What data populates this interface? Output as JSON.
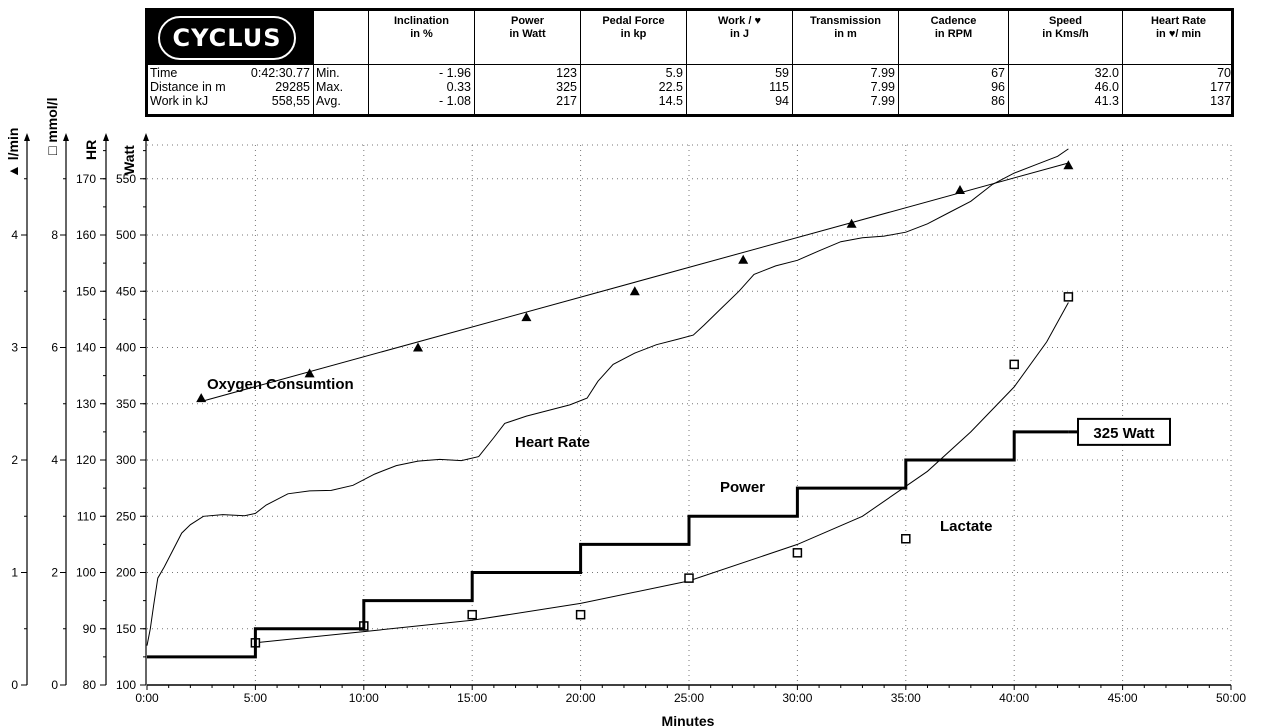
{
  "logo": {
    "text": "CYCLUS 2"
  },
  "header": {
    "columns": [
      {
        "line1": "Inclination",
        "line2": "in %"
      },
      {
        "line1": "Power",
        "line2": "in Watt"
      },
      {
        "line1": "Pedal Force",
        "line2": "in kp"
      },
      {
        "line1": "Work / ♥",
        "line2": "in J"
      },
      {
        "line1": "Transmission",
        "line2": "in m"
      },
      {
        "line1": "Cadence",
        "line2": "in RPM"
      },
      {
        "line1": "Speed",
        "line2": "in Kms/h"
      },
      {
        "line1": "Heart Rate",
        "line2": "in ♥/ min"
      }
    ],
    "summary": [
      {
        "label": "Time",
        "value": "0:42:30.77"
      },
      {
        "label": "Distance in m",
        "value": "29285"
      },
      {
        "label": "Work in kJ",
        "value": "558,55"
      }
    ],
    "stats": [
      {
        "label": "Min.",
        "values": [
          "- 1.96",
          "123",
          "5.9",
          "59",
          "7.99",
          "67",
          "32.0",
          "70"
        ]
      },
      {
        "label": "Max.",
        "values": [
          "0.33",
          "325",
          "22.5",
          "115",
          "7.99",
          "96",
          "46.0",
          "177"
        ]
      },
      {
        "label": "Avg.",
        "values": [
          "- 1.08",
          "217",
          "14.5",
          "94",
          "7.99",
          "86",
          "41.3",
          "137"
        ]
      }
    ]
  },
  "chart_data": {
    "type": "line",
    "xlabel": "Minutes",
    "xlim": [
      0,
      50
    ],
    "x_ticks": [
      "0:00",
      "5:00",
      "10:00",
      "15:00",
      "20:00",
      "25:00",
      "30:00",
      "35:00",
      "40:00",
      "45:00",
      "50:00"
    ],
    "grid": true,
    "axes": [
      {
        "id": "vo2",
        "label": "▲ l/min",
        "range": [
          0,
          4.8
        ],
        "ticks": [
          "0",
          "1",
          "2",
          "3",
          "4"
        ],
        "tick_values": [
          0,
          1,
          2,
          3,
          4
        ]
      },
      {
        "id": "lactate",
        "label": "□ mmol/l",
        "range": [
          0,
          9.6
        ],
        "ticks": [
          "0",
          "2",
          "4",
          "6",
          "8"
        ],
        "tick_values": [
          0,
          2,
          4,
          6,
          8
        ]
      },
      {
        "id": "hr",
        "label": "HR",
        "range": [
          80,
          176
        ],
        "ticks": [
          "80",
          "90",
          "100",
          "110",
          "120",
          "130",
          "140",
          "150",
          "160",
          "170"
        ],
        "tick_values": [
          80,
          90,
          100,
          110,
          120,
          130,
          140,
          150,
          160,
          170
        ]
      },
      {
        "id": "watt",
        "label": "Watt",
        "range": [
          100,
          580
        ],
        "ticks": [
          "100",
          "150",
          "200",
          "250",
          "300",
          "350",
          "400",
          "450",
          "500",
          "550"
        ],
        "tick_values": [
          100,
          150,
          200,
          250,
          300,
          350,
          400,
          450,
          500,
          550
        ]
      }
    ],
    "series": [
      {
        "name": "Oxygen Consumtion",
        "axis": "vo2",
        "marker": "triangle",
        "points": [
          [
            2.5,
            2.55
          ],
          [
            7.5,
            2.77
          ],
          [
            12.5,
            3.0
          ],
          [
            17.5,
            3.27
          ],
          [
            22.5,
            3.5
          ],
          [
            27.5,
            3.78
          ],
          [
            32.5,
            4.1
          ],
          [
            37.5,
            4.4
          ],
          [
            42.5,
            4.62
          ]
        ],
        "trend": [
          [
            2.5,
            2.52
          ],
          [
            42.5,
            4.64
          ]
        ]
      },
      {
        "name": "Heart Rate",
        "axis": "hr",
        "points": [
          [
            0,
            87
          ],
          [
            0.15,
            90
          ],
          [
            0.3,
            94
          ],
          [
            0.5,
            99
          ],
          [
            0.8,
            101
          ],
          [
            1.2,
            104
          ],
          [
            1.6,
            107
          ],
          [
            2,
            108.5
          ],
          [
            2.6,
            110
          ],
          [
            3.5,
            110.3
          ],
          [
            4.5,
            110.1
          ],
          [
            5,
            110.5
          ],
          [
            5.5,
            112
          ],
          [
            6.5,
            114
          ],
          [
            7.5,
            114.5
          ],
          [
            8.5,
            114.6
          ],
          [
            9.5,
            115.5
          ],
          [
            10.5,
            117.5
          ],
          [
            11.5,
            119
          ],
          [
            12.5,
            119.8
          ],
          [
            13.5,
            120.1
          ],
          [
            14.5,
            119.9
          ],
          [
            15.3,
            120.6
          ],
          [
            16,
            124
          ],
          [
            16.5,
            126.5
          ],
          [
            17.5,
            127.8
          ],
          [
            18.5,
            128.8
          ],
          [
            19.5,
            129.8
          ],
          [
            20.3,
            131
          ],
          [
            20.8,
            134
          ],
          [
            21.5,
            137
          ],
          [
            22.5,
            139
          ],
          [
            23.5,
            140.5
          ],
          [
            24.5,
            141.5
          ],
          [
            25.2,
            142.2
          ],
          [
            25.7,
            144
          ],
          [
            26.5,
            147
          ],
          [
            27.3,
            150
          ],
          [
            28,
            153
          ],
          [
            29,
            154.5
          ],
          [
            30,
            155.5
          ],
          [
            31,
            157.2
          ],
          [
            32,
            158.8
          ],
          [
            33,
            159.5
          ],
          [
            34,
            159.8
          ],
          [
            35,
            160.5
          ],
          [
            36,
            162
          ],
          [
            37,
            164
          ],
          [
            38,
            166
          ],
          [
            39,
            169
          ],
          [
            40,
            171
          ],
          [
            41,
            172.5
          ],
          [
            42,
            174
          ],
          [
            42.5,
            175.3
          ]
        ]
      },
      {
        "name": "Power",
        "axis": "watt",
        "step": true,
        "points": [
          [
            0,
            125
          ],
          [
            5,
            125
          ],
          [
            5,
            150
          ],
          [
            10,
            150
          ],
          [
            10,
            175
          ],
          [
            15,
            175
          ],
          [
            15,
            200
          ],
          [
            20,
            200
          ],
          [
            20,
            225
          ],
          [
            25,
            225
          ],
          [
            25,
            250
          ],
          [
            30,
            250
          ],
          [
            30,
            275
          ],
          [
            35,
            275
          ],
          [
            35,
            300
          ],
          [
            40,
            300
          ],
          [
            40,
            325
          ],
          [
            42.5,
            325
          ]
        ],
        "callout": "325 Watt"
      },
      {
        "name": "Lactate",
        "axis": "lactate",
        "marker": "square",
        "points": [
          [
            5,
            0.75
          ],
          [
            10,
            1.05
          ],
          [
            15,
            1.25
          ],
          [
            20,
            1.25
          ],
          [
            25,
            1.9
          ],
          [
            30,
            2.35
          ],
          [
            35,
            2.6
          ],
          [
            40,
            5.7
          ],
          [
            42.5,
            6.9
          ]
        ],
        "curve": [
          [
            5,
            0.75
          ],
          [
            10,
            0.95
          ],
          [
            15,
            1.15
          ],
          [
            20,
            1.45
          ],
          [
            25,
            1.85
          ],
          [
            30,
            2.5
          ],
          [
            33,
            3.0
          ],
          [
            36,
            3.8
          ],
          [
            38,
            4.5
          ],
          [
            40,
            5.3
          ],
          [
            41.5,
            6.1
          ],
          [
            42.5,
            6.8
          ]
        ]
      }
    ]
  }
}
